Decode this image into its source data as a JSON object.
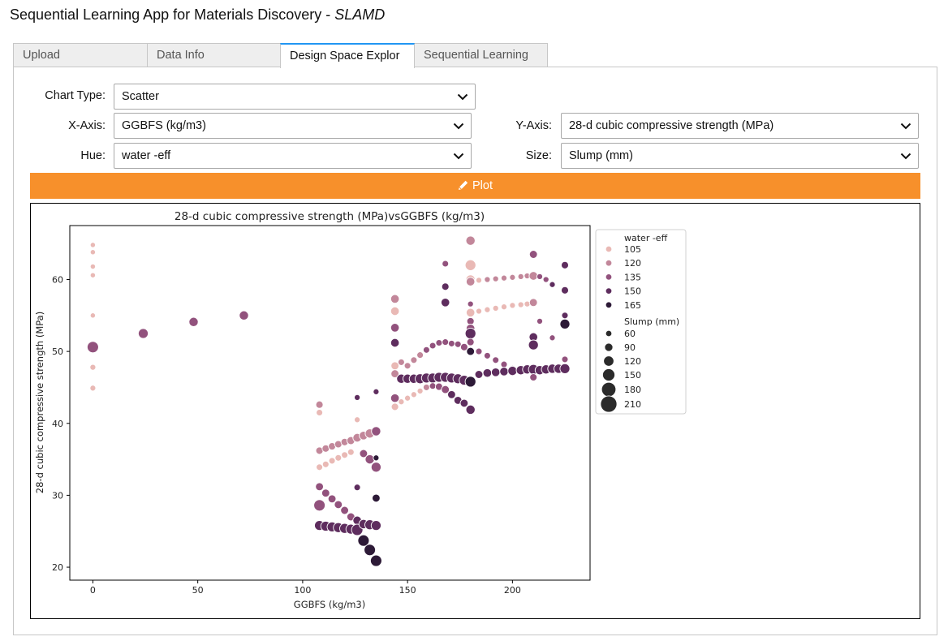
{
  "app": {
    "title": "Sequential Learning App for Materials Discovery - ",
    "title_em": "SLAMD"
  },
  "tabs": [
    {
      "label": "Upload",
      "active": false
    },
    {
      "label": "Data Info",
      "active": false
    },
    {
      "label": "Design Space Explor",
      "active": true
    },
    {
      "label": "Sequential Learning",
      "active": false
    }
  ],
  "controls": {
    "chart_type": {
      "label": "Chart Type:",
      "value": "Scatter"
    },
    "x_axis": {
      "label": "X-Axis:",
      "value": "GGBFS (kg/m3)"
    },
    "y_axis": {
      "label": "Y-Axis:",
      "value": "28-d cubic compressive strength (MPa)"
    },
    "hue": {
      "label": "Hue:",
      "value": "water -eff"
    },
    "size": {
      "label": "Size:",
      "value": "Slump (mm)"
    }
  },
  "plot_button": {
    "label": "Plot",
    "color": "#f7902b"
  },
  "chart_data": {
    "type": "scatter",
    "title": "28-d cubic compressive strength (MPa)vsGGBFS (kg/m3)",
    "xlabel": "GGBFS (kg/m3)",
    "ylabel": "28-d cubic compressive strength (MPa)",
    "xlim": [
      -11,
      237
    ],
    "ylim": [
      18.2,
      67.5
    ],
    "xticks": [
      0,
      50,
      100,
      150,
      200
    ],
    "yticks": [
      20,
      30,
      40,
      50,
      60
    ],
    "grid": false,
    "legend_position": "right",
    "hue_legend": {
      "title": "water -eff",
      "entries": [
        {
          "label": "105",
          "color": "#e9b9b5"
        },
        {
          "label": "120",
          "color": "#c2879a"
        },
        {
          "label": "135",
          "color": "#92527d"
        },
        {
          "label": "150",
          "color": "#5e2d5e"
        },
        {
          "label": "165",
          "color": "#2d1a37"
        }
      ]
    },
    "size_legend": {
      "title": "Slump (mm)",
      "entries": [
        {
          "label": "60",
          "value": 60
        },
        {
          "label": "90",
          "value": 90
        },
        {
          "label": "120",
          "value": 120
        },
        {
          "label": "150",
          "value": 150
        },
        {
          "label": "180",
          "value": 180
        },
        {
          "label": "210",
          "value": 210
        }
      ]
    },
    "points": [
      {
        "x": 0,
        "y": 64.8,
        "hue": 105,
        "size": 60
      },
      {
        "x": 0,
        "y": 63.8,
        "hue": 105,
        "size": 60
      },
      {
        "x": 0,
        "y": 61.8,
        "hue": 105,
        "size": 60
      },
      {
        "x": 0,
        "y": 60.6,
        "hue": 105,
        "size": 60
      },
      {
        "x": 0,
        "y": 55.0,
        "hue": 105,
        "size": 60
      },
      {
        "x": 0,
        "y": 47.8,
        "hue": 105,
        "size": 70
      },
      {
        "x": 0,
        "y": 44.9,
        "hue": 105,
        "size": 70
      },
      {
        "x": 0,
        "y": 50.6,
        "hue": 135,
        "size": 150
      },
      {
        "x": 24,
        "y": 52.5,
        "hue": 135,
        "size": 130
      },
      {
        "x": 48,
        "y": 54.1,
        "hue": 135,
        "size": 120
      },
      {
        "x": 72,
        "y": 55.0,
        "hue": 135,
        "size": 120
      },
      {
        "x": 108,
        "y": 42.6,
        "hue": 120,
        "size": 90
      },
      {
        "x": 108,
        "y": 41.5,
        "hue": 105,
        "size": 80
      },
      {
        "x": 108,
        "y": 36.2,
        "hue": 120,
        "size": 90
      },
      {
        "x": 108,
        "y": 33.9,
        "hue": 105,
        "size": 80
      },
      {
        "x": 108,
        "y": 31.2,
        "hue": 135,
        "size": 100
      },
      {
        "x": 108,
        "y": 28.6,
        "hue": 135,
        "size": 150
      },
      {
        "x": 108,
        "y": 25.8,
        "hue": 150,
        "size": 130
      },
      {
        "x": 111,
        "y": 36.5,
        "hue": 120,
        "size": 90
      },
      {
        "x": 111,
        "y": 34.3,
        "hue": 105,
        "size": 80
      },
      {
        "x": 111,
        "y": 30.3,
        "hue": 135,
        "size": 100
      },
      {
        "x": 111,
        "y": 25.7,
        "hue": 150,
        "size": 130
      },
      {
        "x": 114,
        "y": 36.8,
        "hue": 120,
        "size": 90
      },
      {
        "x": 114,
        "y": 34.8,
        "hue": 105,
        "size": 80
      },
      {
        "x": 114,
        "y": 29.5,
        "hue": 135,
        "size": 100
      },
      {
        "x": 114,
        "y": 25.6,
        "hue": 150,
        "size": 130
      },
      {
        "x": 117,
        "y": 37.1,
        "hue": 120,
        "size": 90
      },
      {
        "x": 117,
        "y": 35.2,
        "hue": 105,
        "size": 80
      },
      {
        "x": 117,
        "y": 28.7,
        "hue": 135,
        "size": 100
      },
      {
        "x": 117,
        "y": 25.5,
        "hue": 150,
        "size": 130
      },
      {
        "x": 120,
        "y": 37.4,
        "hue": 120,
        "size": 90
      },
      {
        "x": 120,
        "y": 35.6,
        "hue": 105,
        "size": 80
      },
      {
        "x": 120,
        "y": 27.9,
        "hue": 135,
        "size": 100
      },
      {
        "x": 120,
        "y": 25.4,
        "hue": 150,
        "size": 130
      },
      {
        "x": 123,
        "y": 37.6,
        "hue": 120,
        "size": 100
      },
      {
        "x": 123,
        "y": 36.0,
        "hue": 105,
        "size": 80
      },
      {
        "x": 123,
        "y": 27.0,
        "hue": 135,
        "size": 100
      },
      {
        "x": 123,
        "y": 25.3,
        "hue": 150,
        "size": 130
      },
      {
        "x": 126,
        "y": 43.6,
        "hue": 150,
        "size": 70
      },
      {
        "x": 126,
        "y": 40.5,
        "hue": 105,
        "size": 70
      },
      {
        "x": 126,
        "y": 38.0,
        "hue": 120,
        "size": 110
      },
      {
        "x": 126,
        "y": 31.1,
        "hue": 150,
        "size": 80
      },
      {
        "x": 126,
        "y": 26.5,
        "hue": 150,
        "size": 110
      },
      {
        "x": 126,
        "y": 25.2,
        "hue": 150,
        "size": 150
      },
      {
        "x": 129,
        "y": 38.3,
        "hue": 120,
        "size": 110
      },
      {
        "x": 129,
        "y": 35.8,
        "hue": 135,
        "size": 100
      },
      {
        "x": 129,
        "y": 26.0,
        "hue": 150,
        "size": 120
      },
      {
        "x": 129,
        "y": 23.7,
        "hue": 165,
        "size": 150
      },
      {
        "x": 132,
        "y": 38.6,
        "hue": 120,
        "size": 120
      },
      {
        "x": 132,
        "y": 35.0,
        "hue": 135,
        "size": 120
      },
      {
        "x": 132,
        "y": 25.9,
        "hue": 150,
        "size": 130
      },
      {
        "x": 132,
        "y": 22.4,
        "hue": 165,
        "size": 150
      },
      {
        "x": 135,
        "y": 44.4,
        "hue": 150,
        "size": 70
      },
      {
        "x": 135,
        "y": 38.9,
        "hue": 135,
        "size": 120
      },
      {
        "x": 135,
        "y": 35.2,
        "hue": 165,
        "size": 70
      },
      {
        "x": 135,
        "y": 33.9,
        "hue": 135,
        "size": 130
      },
      {
        "x": 135,
        "y": 29.6,
        "hue": 165,
        "size": 100
      },
      {
        "x": 135,
        "y": 25.8,
        "hue": 150,
        "size": 130
      },
      {
        "x": 135,
        "y": 20.9,
        "hue": 165,
        "size": 150
      },
      {
        "x": 144,
        "y": 57.3,
        "hue": 120,
        "size": 110
      },
      {
        "x": 144,
        "y": 55.6,
        "hue": 105,
        "size": 110
      },
      {
        "x": 144,
        "y": 53.3,
        "hue": 135,
        "size": 110
      },
      {
        "x": 144,
        "y": 51.2,
        "hue": 150,
        "size": 110
      },
      {
        "x": 144,
        "y": 48.0,
        "hue": 105,
        "size": 100
      },
      {
        "x": 144,
        "y": 46.9,
        "hue": 120,
        "size": 100
      },
      {
        "x": 144,
        "y": 43.5,
        "hue": 135,
        "size": 110
      },
      {
        "x": 144,
        "y": 42.3,
        "hue": 105,
        "size": 90
      },
      {
        "x": 147,
        "y": 48.5,
        "hue": 120,
        "size": 80
      },
      {
        "x": 147,
        "y": 46.2,
        "hue": 150,
        "size": 120
      },
      {
        "x": 147,
        "y": 43.0,
        "hue": 105,
        "size": 70
      },
      {
        "x": 150,
        "y": 48.0,
        "hue": 120,
        "size": 80
      },
      {
        "x": 150,
        "y": 46.2,
        "hue": 150,
        "size": 120
      },
      {
        "x": 150,
        "y": 43.5,
        "hue": 105,
        "size": 70
      },
      {
        "x": 153,
        "y": 48.8,
        "hue": 120,
        "size": 80
      },
      {
        "x": 153,
        "y": 46.2,
        "hue": 150,
        "size": 120
      },
      {
        "x": 153,
        "y": 44.0,
        "hue": 105,
        "size": 70
      },
      {
        "x": 156,
        "y": 49.5,
        "hue": 120,
        "size": 80
      },
      {
        "x": 156,
        "y": 46.2,
        "hue": 150,
        "size": 130
      },
      {
        "x": 156,
        "y": 44.5,
        "hue": 105,
        "size": 70
      },
      {
        "x": 159,
        "y": 50.2,
        "hue": 135,
        "size": 80
      },
      {
        "x": 159,
        "y": 46.3,
        "hue": 150,
        "size": 130
      },
      {
        "x": 159,
        "y": 45.0,
        "hue": 120,
        "size": 80
      },
      {
        "x": 162,
        "y": 50.8,
        "hue": 135,
        "size": 80
      },
      {
        "x": 162,
        "y": 46.3,
        "hue": 150,
        "size": 130
      },
      {
        "x": 162,
        "y": 45.2,
        "hue": 135,
        "size": 80
      },
      {
        "x": 165,
        "y": 51.2,
        "hue": 135,
        "size": 80
      },
      {
        "x": 165,
        "y": 46.4,
        "hue": 150,
        "size": 130
      },
      {
        "x": 165,
        "y": 45.1,
        "hue": 135,
        "size": 90
      },
      {
        "x": 168,
        "y": 62.2,
        "hue": 135,
        "size": 80
      },
      {
        "x": 168,
        "y": 59.0,
        "hue": 150,
        "size": 90
      },
      {
        "x": 168,
        "y": 56.8,
        "hue": 150,
        "size": 110
      },
      {
        "x": 168,
        "y": 51.3,
        "hue": 135,
        "size": 80
      },
      {
        "x": 168,
        "y": 46.4,
        "hue": 150,
        "size": 130
      },
      {
        "x": 168,
        "y": 44.7,
        "hue": 135,
        "size": 100
      },
      {
        "x": 171,
        "y": 51.1,
        "hue": 135,
        "size": 80
      },
      {
        "x": 171,
        "y": 46.3,
        "hue": 150,
        "size": 130
      },
      {
        "x": 171,
        "y": 44.0,
        "hue": 150,
        "size": 100
      },
      {
        "x": 174,
        "y": 51.0,
        "hue": 135,
        "size": 80
      },
      {
        "x": 174,
        "y": 46.2,
        "hue": 150,
        "size": 130
      },
      {
        "x": 174,
        "y": 43.2,
        "hue": 150,
        "size": 100
      },
      {
        "x": 177,
        "y": 50.6,
        "hue": 135,
        "size": 90
      },
      {
        "x": 177,
        "y": 46.0,
        "hue": 150,
        "size": 130
      },
      {
        "x": 177,
        "y": 42.8,
        "hue": 150,
        "size": 100
      },
      {
        "x": 180,
        "y": 65.4,
        "hue": 120,
        "size": 120
      },
      {
        "x": 180,
        "y": 62.0,
        "hue": 105,
        "size": 140
      },
      {
        "x": 180,
        "y": 60.0,
        "hue": 105,
        "size": 120
      },
      {
        "x": 180,
        "y": 59.7,
        "hue": 120,
        "size": 110
      },
      {
        "x": 180,
        "y": 56.6,
        "hue": 135,
        "size": 70
      },
      {
        "x": 180,
        "y": 55.4,
        "hue": 105,
        "size": 110
      },
      {
        "x": 180,
        "y": 54.2,
        "hue": 135,
        "size": 90
      },
      {
        "x": 180,
        "y": 53.2,
        "hue": 135,
        "size": 110
      },
      {
        "x": 180,
        "y": 52.5,
        "hue": 150,
        "size": 140
      },
      {
        "x": 180,
        "y": 51.3,
        "hue": 135,
        "size": 90
      },
      {
        "x": 180,
        "y": 50.0,
        "hue": 165,
        "size": 100
      },
      {
        "x": 180,
        "y": 45.8,
        "hue": 165,
        "size": 140
      },
      {
        "x": 180,
        "y": 41.9,
        "hue": 150,
        "size": 120
      },
      {
        "x": 184,
        "y": 55.6,
        "hue": 105,
        "size": 70
      },
      {
        "x": 184,
        "y": 59.9,
        "hue": 105,
        "size": 70
      },
      {
        "x": 184,
        "y": 50.0,
        "hue": 135,
        "size": 80
      },
      {
        "x": 184,
        "y": 46.8,
        "hue": 150,
        "size": 100
      },
      {
        "x": 188,
        "y": 55.8,
        "hue": 105,
        "size": 70
      },
      {
        "x": 188,
        "y": 60.0,
        "hue": 120,
        "size": 70
      },
      {
        "x": 188,
        "y": 49.4,
        "hue": 135,
        "size": 80
      },
      {
        "x": 188,
        "y": 47.0,
        "hue": 150,
        "size": 110
      },
      {
        "x": 192,
        "y": 56.0,
        "hue": 105,
        "size": 70
      },
      {
        "x": 192,
        "y": 60.1,
        "hue": 120,
        "size": 70
      },
      {
        "x": 192,
        "y": 48.8,
        "hue": 135,
        "size": 80
      },
      {
        "x": 192,
        "y": 47.1,
        "hue": 150,
        "size": 110
      },
      {
        "x": 196,
        "y": 56.2,
        "hue": 105,
        "size": 70
      },
      {
        "x": 196,
        "y": 60.2,
        "hue": 120,
        "size": 70
      },
      {
        "x": 196,
        "y": 48.2,
        "hue": 135,
        "size": 80
      },
      {
        "x": 196,
        "y": 47.2,
        "hue": 150,
        "size": 110
      },
      {
        "x": 200,
        "y": 56.4,
        "hue": 105,
        "size": 70
      },
      {
        "x": 200,
        "y": 60.3,
        "hue": 120,
        "size": 70
      },
      {
        "x": 200,
        "y": 47.6,
        "hue": 150,
        "size": 80
      },
      {
        "x": 200,
        "y": 47.3,
        "hue": 150,
        "size": 120
      },
      {
        "x": 204,
        "y": 56.5,
        "hue": 105,
        "size": 70
      },
      {
        "x": 204,
        "y": 60.4,
        "hue": 120,
        "size": 70
      },
      {
        "x": 204,
        "y": 47.4,
        "hue": 150,
        "size": 120
      },
      {
        "x": 207,
        "y": 56.6,
        "hue": 105,
        "size": 70
      },
      {
        "x": 207,
        "y": 60.5,
        "hue": 120,
        "size": 70
      },
      {
        "x": 207,
        "y": 47.5,
        "hue": 150,
        "size": 120
      },
      {
        "x": 210,
        "y": 63.5,
        "hue": 135,
        "size": 100
      },
      {
        "x": 210,
        "y": 60.5,
        "hue": 120,
        "size": 110
      },
      {
        "x": 210,
        "y": 56.8,
        "hue": 120,
        "size": 100
      },
      {
        "x": 210,
        "y": 52.0,
        "hue": 150,
        "size": 110
      },
      {
        "x": 210,
        "y": 50.9,
        "hue": 150,
        "size": 130
      },
      {
        "x": 210,
        "y": 47.5,
        "hue": 150,
        "size": 130
      },
      {
        "x": 210,
        "y": 46.4,
        "hue": 135,
        "size": 90
      },
      {
        "x": 213,
        "y": 54.2,
        "hue": 135,
        "size": 70
      },
      {
        "x": 213,
        "y": 60.4,
        "hue": 135,
        "size": 70
      },
      {
        "x": 213,
        "y": 47.4,
        "hue": 150,
        "size": 120
      },
      {
        "x": 216,
        "y": 60.0,
        "hue": 135,
        "size": 70
      },
      {
        "x": 216,
        "y": 47.5,
        "hue": 150,
        "size": 120
      },
      {
        "x": 219,
        "y": 59.3,
        "hue": 150,
        "size": 70
      },
      {
        "x": 219,
        "y": 51.9,
        "hue": 135,
        "size": 70
      },
      {
        "x": 219,
        "y": 47.6,
        "hue": 150,
        "size": 120
      },
      {
        "x": 222,
        "y": 47.6,
        "hue": 150,
        "size": 120
      },
      {
        "x": 225,
        "y": 62.0,
        "hue": 150,
        "size": 90
      },
      {
        "x": 225,
        "y": 58.5,
        "hue": 150,
        "size": 90
      },
      {
        "x": 225,
        "y": 55.0,
        "hue": 150,
        "size": 80
      },
      {
        "x": 225,
        "y": 53.8,
        "hue": 165,
        "size": 130
      },
      {
        "x": 225,
        "y": 48.9,
        "hue": 135,
        "size": 80
      },
      {
        "x": 225,
        "y": 47.6,
        "hue": 150,
        "size": 130
      }
    ]
  }
}
